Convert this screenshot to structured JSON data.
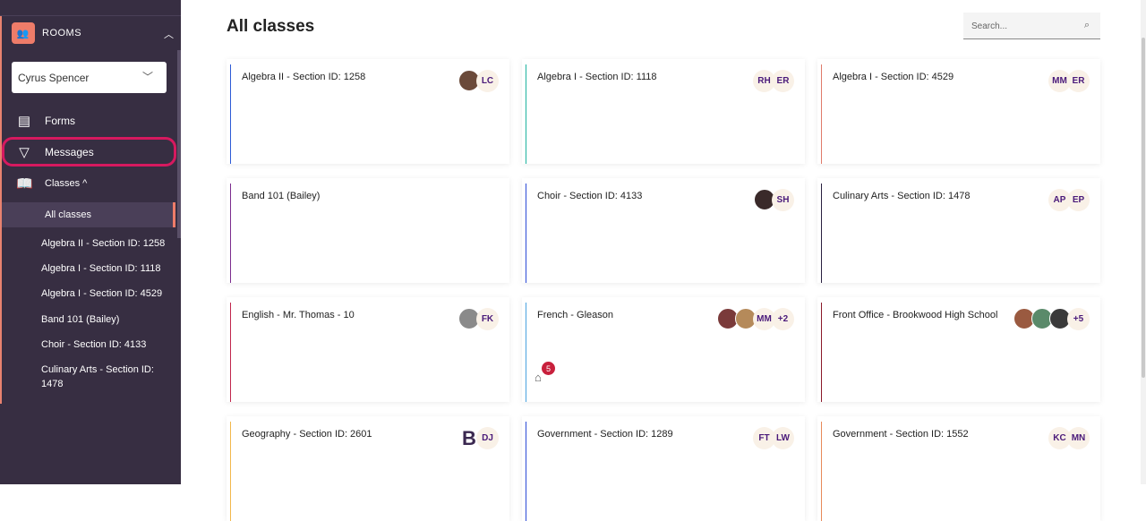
{
  "sidebar": {
    "section": "ROOMS",
    "user": "Cyrus Spencer",
    "nav": {
      "forms": "Forms",
      "messages": "Messages",
      "classes": "Classes ^"
    },
    "all_classes": "All classes",
    "classes": [
      "Algebra II - Section ID: 1258",
      "Algebra I - Section ID: 1118",
      "Algebra I - Section ID: 4529",
      "Band 101 (Bailey)",
      "Choir - Section ID: 4133",
      "Culinary Arts - Section ID: 1478"
    ]
  },
  "main": {
    "title": "All classes",
    "search_placeholder": "Search...",
    "cards": [
      {
        "title": "Algebra II - Section ID: 1258",
        "color": "#2d5bd6",
        "members": [
          "LC"
        ],
        "photos": [
          "#6b4a3a"
        ]
      },
      {
        "title": "Algebra I - Section ID: 1118",
        "color": "#1fb39f",
        "members": [
          "RH",
          "ER"
        ]
      },
      {
        "title": "Algebra I - Section ID: 4529",
        "color": "#e07b6a",
        "members": [
          "MM",
          "ER"
        ]
      },
      {
        "title": "Band 101 (Bailey)",
        "color": "#7b2d8e",
        "members": []
      },
      {
        "title": "Choir - Section ID: 4133",
        "color": "#2d4bd6",
        "members": [
          "SH"
        ],
        "photos": [
          "#3a2a2a"
        ]
      },
      {
        "title": "Culinary Arts - Section ID: 1478",
        "color": "#2a2040",
        "members": [
          "AP",
          "EP"
        ]
      },
      {
        "title": "English - Mr. Thomas - 10",
        "color": "#c0274d",
        "members": [
          "FK"
        ],
        "photos": [
          "#8a8a8a"
        ]
      },
      {
        "title": "French - Gleason",
        "color": "#4aa3df",
        "members": [
          "MM",
          "+2"
        ],
        "photos": [
          "#7a3a3a",
          "#b58a5a"
        ],
        "notifications": "5"
      },
      {
        "title": "Front Office - Brookwood High School",
        "color": "#8b1a2a",
        "members": [
          "+5"
        ],
        "photos": [
          "#9a5a40",
          "#5a8a6a",
          "#3a3a3a"
        ]
      },
      {
        "title": "Geography - Section ID: 2601",
        "color": "#f2b84b",
        "members": [
          "DJ"
        ],
        "logo": "B"
      },
      {
        "title": "Government - Section ID: 1289",
        "color": "#2d4bd6",
        "members": [
          "FT",
          "LW"
        ]
      },
      {
        "title": "Government - Section ID: 1552",
        "color": "#e88a5a",
        "members": [
          "KC",
          "MN"
        ]
      }
    ]
  }
}
